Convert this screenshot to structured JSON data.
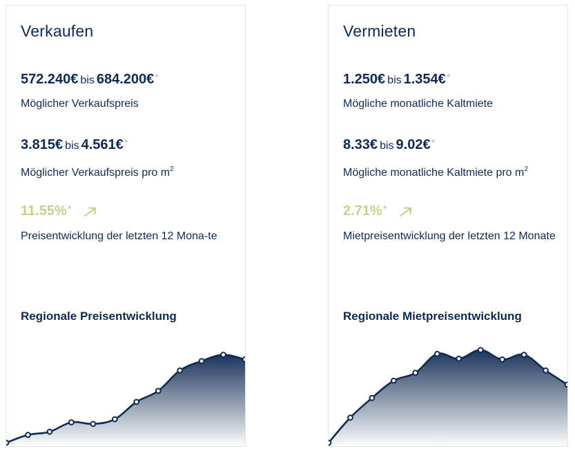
{
  "cards": [
    {
      "title": "Verkaufen",
      "price_range": {
        "from": "572.240€",
        "connector": "bis",
        "to": "684.200€",
        "asterisk": "*",
        "label": "Möglicher Verkaufspreis"
      },
      "sqm_range": {
        "from": "3.815€",
        "connector": "bis",
        "to": "4.561€",
        "asterisk": "*",
        "label": "Möglicher Verkaufspreis pro m",
        "label_sup": "2"
      },
      "trend": {
        "value": "11.55%",
        "asterisk": "*",
        "label": "Preisentwicklung der letzten 12 Mona-te"
      },
      "chart_title": "Regionale Preisentwicklung"
    },
    {
      "title": "Vermieten",
      "price_range": {
        "from": "1.250€",
        "connector": "bis",
        "to": "1.354€",
        "asterisk": "*",
        "label": "Mögliche monatliche Kaltmiete"
      },
      "sqm_range": {
        "from": "8.33€",
        "connector": "bis",
        "to": "9.02€",
        "asterisk": "*",
        "label": "Mögliche monatliche Kaltmiete pro m",
        "label_sup": "2"
      },
      "trend": {
        "value": "2.71%",
        "asterisk": "*",
        "label": "Mietpreisentwicklung der letzten 12 Monate"
      },
      "chart_title": "Regionale Mietpreisentwicklung"
    }
  ],
  "colors": {
    "navy": "#0f2a52",
    "trend_green": "#c6cf8e",
    "asterisk_grey": "#b8b8b8",
    "border": "#e3e3e3"
  },
  "chart_data": [
    {
      "type": "area",
      "title": "Regionale Preisentwicklung",
      "x": [
        1,
        2,
        3,
        4,
        5,
        6,
        7,
        8,
        9,
        10,
        11,
        12
      ],
      "values": [
        0.06,
        0.16,
        0.2,
        0.32,
        0.3,
        0.36,
        0.58,
        0.72,
        0.98,
        1.1,
        1.18,
        1.12
      ],
      "ylim": [
        0,
        1.5
      ],
      "grid": false
    },
    {
      "type": "area",
      "title": "Regionale Mietpreisentwicklung",
      "x": [
        1,
        2,
        3,
        4,
        5,
        6,
        7,
        8,
        9,
        10,
        11,
        12
      ],
      "values": [
        0.06,
        0.38,
        0.63,
        0.85,
        0.95,
        1.19,
        1.13,
        1.24,
        1.12,
        1.18,
        0.98,
        0.8
      ],
      "ylim": [
        0,
        1.5
      ],
      "grid": false
    }
  ]
}
